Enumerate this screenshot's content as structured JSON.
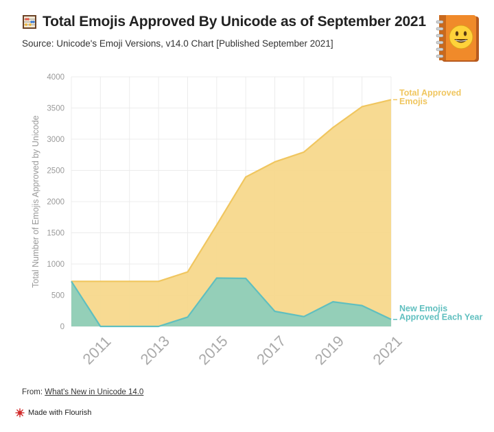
{
  "header": {
    "title": "Total Emojis Approved By Unicode as of September 2021",
    "subtitle": "Source: Unicode's Emoji Versions, v14.0 Chart [Published September 2021]"
  },
  "footer": {
    "source_prefix": "From:",
    "source_link": "What's New in Unicode 14.0",
    "made_with": "Made with Flourish"
  },
  "icons": {
    "title_icon": "abacus-icon",
    "corner_icon": "smiley-book-icon",
    "flourish_logo": "flourish-logo-icon"
  },
  "chart_data": {
    "type": "area",
    "title": "Total Emojis Approved By Unicode as of September 2021",
    "ylabel": "Total Number of Emojis Approved by Unicode",
    "xlabel": "",
    "ylim": [
      0,
      4000
    ],
    "y_ticks": [
      0,
      500,
      1000,
      1500,
      2000,
      2500,
      3000,
      3500,
      4000
    ],
    "xlim": [
      2010,
      2021
    ],
    "x_tick_labels": [
      "2011",
      "2013",
      "2015",
      "2017",
      "2019",
      "2021"
    ],
    "x_ticks": [
      2011,
      2013,
      2015,
      2017,
      2019,
      2021
    ],
    "x": [
      2010,
      2011,
      2012,
      2013,
      2014,
      2015,
      2016,
      2017,
      2018,
      2019,
      2020,
      2021
    ],
    "grid": true,
    "series": [
      {
        "name": "Total Approved Emojis",
        "color": "#f7d88c",
        "line_color": "#f0c65f",
        "values": [
          722,
          722,
          722,
          722,
          872,
          1624,
          2394,
          2636,
          2793,
          3187,
          3521,
          3633
        ]
      },
      {
        "name": "New Emojis Approved Each Year",
        "color": "#8ecfba",
        "line_color": "#5fbfbf",
        "values": [
          722,
          0,
          0,
          0,
          150,
          775,
          769,
          242,
          157,
          394,
          334,
          112
        ]
      }
    ],
    "end_labels": [
      {
        "lines": [
          "Total Approved",
          "Emojis"
        ],
        "color": "#f0c65f"
      },
      {
        "lines": [
          "New Emojis",
          "Approved Each Year"
        ],
        "color": "#5fbfbf"
      }
    ]
  }
}
